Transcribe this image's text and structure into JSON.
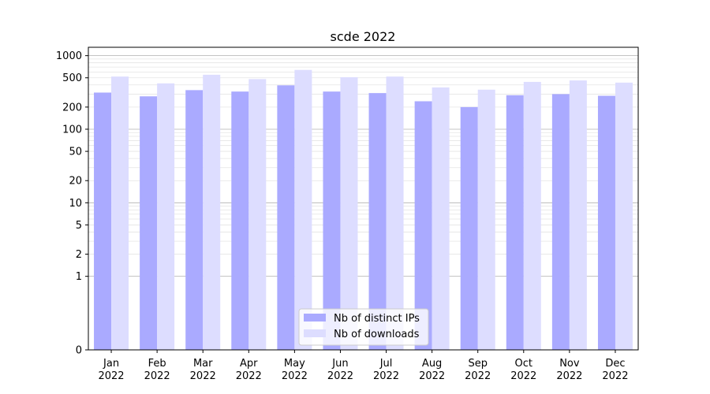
{
  "chart_data": {
    "type": "bar",
    "title": "scde 2022",
    "xlabel": "",
    "ylabel": "",
    "y_scale": "symlog",
    "ylim": [
      0,
      1300
    ],
    "yticks": [
      0,
      1,
      2,
      5,
      10,
      20,
      50,
      100,
      200,
      500,
      1000
    ],
    "categories": [
      "Jan\n2022",
      "Feb\n2022",
      "Mar\n2022",
      "Apr\n2022",
      "May\n2022",
      "Jun\n2022",
      "Jul\n2022",
      "Aug\n2022",
      "Sep\n2022",
      "Oct\n2022",
      "Nov\n2022",
      "Dec\n2022"
    ],
    "series": [
      {
        "name": "Nb of distinct IPs",
        "color": "#aaaaff",
        "values": [
          315,
          280,
          340,
          325,
          395,
          325,
          310,
          240,
          200,
          290,
          300,
          285
        ]
      },
      {
        "name": "Nb of downloads",
        "color": "#ddddff",
        "values": [
          520,
          420,
          550,
          480,
          640,
          510,
          520,
          370,
          345,
          440,
          460,
          430
        ]
      }
    ],
    "grid": true,
    "legend_position": "bottom-center"
  }
}
